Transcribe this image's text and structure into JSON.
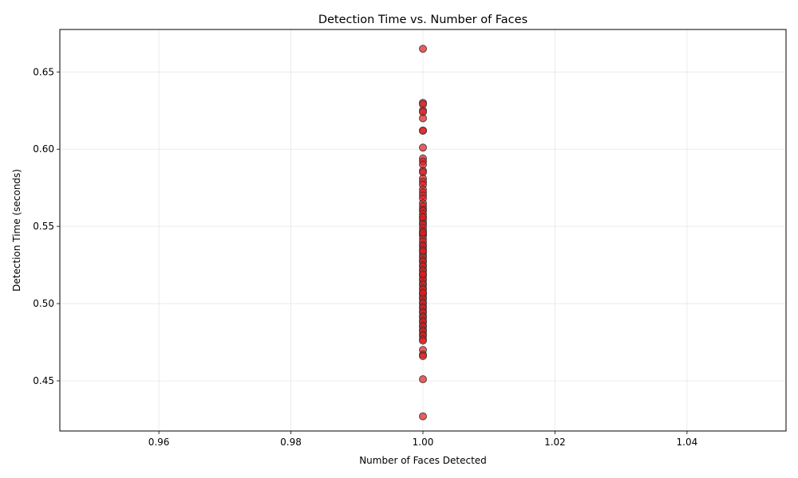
{
  "chart_data": {
    "type": "scatter",
    "title": "Detection Time vs. Number of Faces",
    "xlabel": "Number of Faces Detected",
    "ylabel": "Detection Time (seconds)",
    "xlim": [
      0.945,
      1.055
    ],
    "ylim": [
      0.4175,
      0.6775
    ],
    "xticks": [
      "0.96",
      "0.98",
      "1.00",
      "1.02",
      "1.04"
    ],
    "yticks": [
      "0.45",
      "0.50",
      "0.55",
      "0.60",
      "0.65"
    ],
    "grid": true,
    "marker_color": "#e41a1c",
    "marker_edge": "#333333",
    "marker_alpha": 0.7,
    "x": [
      1,
      1,
      1,
      1,
      1,
      1,
      1,
      1,
      1,
      1,
      1,
      1,
      1,
      1,
      1,
      1,
      1,
      1,
      1,
      1,
      1,
      1,
      1,
      1,
      1,
      1,
      1,
      1,
      1,
      1,
      1,
      1,
      1,
      1,
      1,
      1,
      1,
      1,
      1,
      1,
      1,
      1,
      1,
      1,
      1,
      1,
      1,
      1,
      1,
      1,
      1,
      1,
      1,
      1,
      1,
      1,
      1,
      1,
      1,
      1,
      1,
      1,
      1,
      1,
      1,
      1,
      1,
      1,
      1,
      1,
      1,
      1,
      1,
      1,
      1,
      1,
      1,
      1,
      1,
      1,
      1,
      1,
      1,
      1,
      1,
      1,
      1,
      1
    ],
    "y": [
      0.665,
      0.63,
      0.629,
      0.625,
      0.624,
      0.62,
      0.612,
      0.612,
      0.601,
      0.594,
      0.592,
      0.59,
      0.586,
      0.585,
      0.581,
      0.579,
      0.577,
      0.574,
      0.572,
      0.57,
      0.568,
      0.565,
      0.563,
      0.561,
      0.56,
      0.558,
      0.556,
      0.554,
      0.552,
      0.551,
      0.549,
      0.547,
      0.545,
      0.544,
      0.542,
      0.54,
      0.538,
      0.537,
      0.535,
      0.533,
      0.531,
      0.53,
      0.528,
      0.527,
      0.525,
      0.524,
      0.522,
      0.521,
      0.519,
      0.518,
      0.516,
      0.515,
      0.513,
      0.512,
      0.51,
      0.509,
      0.507,
      0.506,
      0.504,
      0.503,
      0.501,
      0.5,
      0.498,
      0.497,
      0.495,
      0.494,
      0.492,
      0.491,
      0.489,
      0.488,
      0.486,
      0.485,
      0.483,
      0.482,
      0.48,
      0.479,
      0.477,
      0.476,
      0.47,
      0.467,
      0.466,
      0.451,
      0.427,
      0.534,
      0.519,
      0.507,
      0.546,
      0.556
    ]
  }
}
